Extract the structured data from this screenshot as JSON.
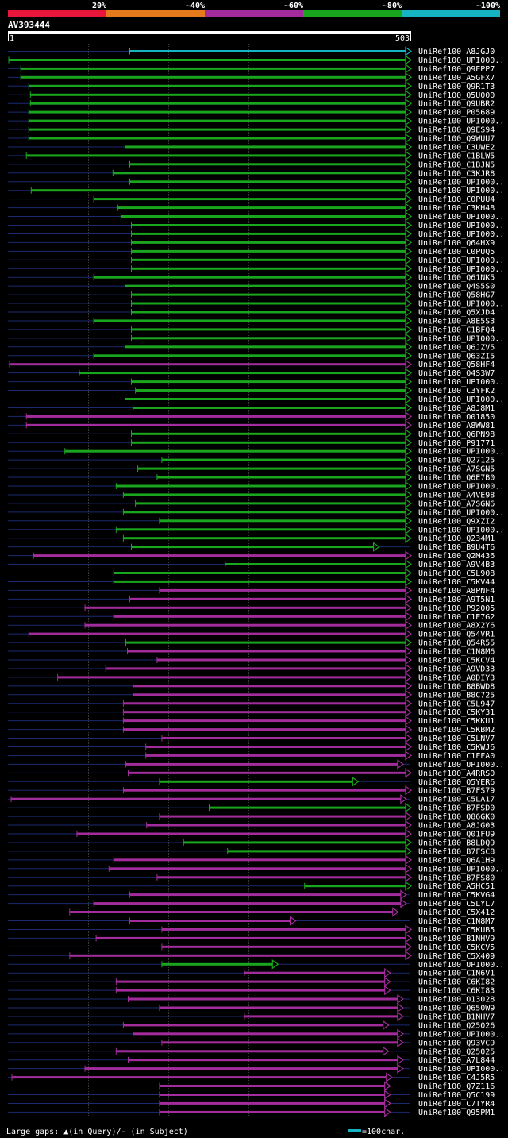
{
  "header": {
    "legend": [
      {
        "label": "20%",
        "color": "#e8163b"
      },
      {
        "label": "~40%",
        "color": "#e87a1e"
      },
      {
        "label": "~60%",
        "color": "#a22c9c"
      },
      {
        "label": "~80%",
        "color": "#19a51d"
      },
      {
        "label": "~100%",
        "color": "#16b3c2"
      }
    ],
    "query_id": "AV393444",
    "ruler_start": "1",
    "ruler_end": "503"
  },
  "colors": {
    "background": "#000000",
    "gap_line": "#1a2a70",
    "grid": "#3a3a3a",
    "text": "#ffffff"
  },
  "chart_data": {
    "type": "alignment-map",
    "query_length": 503,
    "note": "start/end in query residues; cat: 1=20%,2=~40%,3=~60%,4=~80%,5=~100% identity",
    "hits": [
      {
        "name": "UniRef100_A8JGJ0",
        "start": 153,
        "end": 503,
        "cat": 5
      },
      {
        "name": "UniRef100_UPI000..",
        "start": 2,
        "end": 503,
        "cat": 4
      },
      {
        "name": "UniRef100_Q9EPP7",
        "start": 17,
        "end": 503,
        "cat": 4
      },
      {
        "name": "UniRef100_A5GFX7",
        "start": 17,
        "end": 503,
        "cat": 4
      },
      {
        "name": "UniRef100_Q9R1T3",
        "start": 27,
        "end": 503,
        "cat": 4
      },
      {
        "name": "UniRef100_Q5U000",
        "start": 29,
        "end": 503,
        "cat": 4
      },
      {
        "name": "UniRef100_Q9UBR2",
        "start": 29,
        "end": 503,
        "cat": 4
      },
      {
        "name": "UniRef100_P05689",
        "start": 27,
        "end": 503,
        "cat": 4
      },
      {
        "name": "UniRef100_UPI000..",
        "start": 27,
        "end": 503,
        "cat": 4
      },
      {
        "name": "UniRef100_Q9ES94",
        "start": 27,
        "end": 503,
        "cat": 4
      },
      {
        "name": "UniRef100_Q9WUU7",
        "start": 27,
        "end": 503,
        "cat": 4
      },
      {
        "name": "UniRef100_C3UWE2",
        "start": 147,
        "end": 503,
        "cat": 4
      },
      {
        "name": "UniRef100_C1BLW5",
        "start": 24,
        "end": 503,
        "cat": 4
      },
      {
        "name": "UniRef100_C1BJN5",
        "start": 153,
        "end": 503,
        "cat": 4
      },
      {
        "name": "UniRef100_C3KJR8",
        "start": 132,
        "end": 503,
        "cat": 4
      },
      {
        "name": "UniRef100_UPI000..",
        "start": 153,
        "end": 503,
        "cat": 4
      },
      {
        "name": "UniRef100_UPI000..",
        "start": 30,
        "end": 503,
        "cat": 4
      },
      {
        "name": "UniRef100_C0PUU4",
        "start": 108,
        "end": 503,
        "cat": 4
      },
      {
        "name": "UniRef100_C3KH48",
        "start": 138,
        "end": 503,
        "cat": 4
      },
      {
        "name": "UniRef100_UPI000..",
        "start": 142,
        "end": 503,
        "cat": 4
      },
      {
        "name": "UniRef100_UPI000..",
        "start": 155,
        "end": 503,
        "cat": 4
      },
      {
        "name": "UniRef100_UPI000..",
        "start": 155,
        "end": 503,
        "cat": 4
      },
      {
        "name": "UniRef100_Q64HX9",
        "start": 155,
        "end": 503,
        "cat": 4
      },
      {
        "name": "UniRef100_C0PUQ5",
        "start": 155,
        "end": 503,
        "cat": 4
      },
      {
        "name": "UniRef100_UPI000..",
        "start": 155,
        "end": 503,
        "cat": 4
      },
      {
        "name": "UniRef100_UPI000..",
        "start": 155,
        "end": 503,
        "cat": 4
      },
      {
        "name": "UniRef100_Q61NK5",
        "start": 108,
        "end": 503,
        "cat": 4
      },
      {
        "name": "UniRef100_Q4S5S0",
        "start": 147,
        "end": 503,
        "cat": 4
      },
      {
        "name": "UniRef100_Q58HG7",
        "start": 155,
        "end": 503,
        "cat": 4
      },
      {
        "name": "UniRef100_UPI000..",
        "start": 155,
        "end": 503,
        "cat": 4
      },
      {
        "name": "UniRef100_Q5XJD4",
        "start": 155,
        "end": 503,
        "cat": 4
      },
      {
        "name": "UniRef100_A8E5S3",
        "start": 108,
        "end": 503,
        "cat": 4
      },
      {
        "name": "UniRef100_C1BFQ4",
        "start": 155,
        "end": 503,
        "cat": 4
      },
      {
        "name": "UniRef100_UPI000..",
        "start": 155,
        "end": 503,
        "cat": 4
      },
      {
        "name": "UniRef100_Q6JZV5",
        "start": 147,
        "end": 503,
        "cat": 4
      },
      {
        "name": "UniRef100_Q63ZI5",
        "start": 108,
        "end": 503,
        "cat": 4
      },
      {
        "name": "UniRef100_Q58HF4",
        "start": 3,
        "end": 503,
        "cat": 3
      },
      {
        "name": "UniRef100_Q4S3W7",
        "start": 90,
        "end": 503,
        "cat": 4
      },
      {
        "name": "UniRef100_UPI000..",
        "start": 155,
        "end": 503,
        "cat": 4
      },
      {
        "name": "UniRef100_C3YFK2",
        "start": 160,
        "end": 503,
        "cat": 4
      },
      {
        "name": "UniRef100_UPI000..",
        "start": 147,
        "end": 503,
        "cat": 4
      },
      {
        "name": "UniRef100_A8J8M1",
        "start": 157,
        "end": 503,
        "cat": 4
      },
      {
        "name": "UniRef100_O01850",
        "start": 24,
        "end": 503,
        "cat": 3
      },
      {
        "name": "UniRef100_A8WW81",
        "start": 24,
        "end": 503,
        "cat": 3
      },
      {
        "name": "UniRef100_Q6PN98",
        "start": 155,
        "end": 503,
        "cat": 4
      },
      {
        "name": "UniRef100_P91771",
        "start": 155,
        "end": 503,
        "cat": 4
      },
      {
        "name": "UniRef100_UPI000..",
        "start": 72,
        "end": 503,
        "cat": 4
      },
      {
        "name": "UniRef100_Q27125",
        "start": 193,
        "end": 503,
        "cat": 4
      },
      {
        "name": "UniRef100_A7SGN5",
        "start": 163,
        "end": 503,
        "cat": 4
      },
      {
        "name": "UniRef100_Q6E7B0",
        "start": 187,
        "end": 503,
        "cat": 4
      },
      {
        "name": "UniRef100_UPI000..",
        "start": 136,
        "end": 503,
        "cat": 4
      },
      {
        "name": "UniRef100_A4VE98",
        "start": 145,
        "end": 503,
        "cat": 4
      },
      {
        "name": "UniRef100_A7SGN6",
        "start": 160,
        "end": 503,
        "cat": 4
      },
      {
        "name": "UniRef100_UPI000..",
        "start": 145,
        "end": 503,
        "cat": 4
      },
      {
        "name": "UniRef100_Q9XZI2",
        "start": 190,
        "end": 503,
        "cat": 4
      },
      {
        "name": "UniRef100_UPI000..",
        "start": 136,
        "end": 503,
        "cat": 4
      },
      {
        "name": "UniRef100_Q234M1",
        "start": 145,
        "end": 503,
        "cat": 4
      },
      {
        "name": "UniRef100_B9U4T6",
        "start": 155,
        "end": 463,
        "cat": 4
      },
      {
        "name": "UniRef100_Q2M436",
        "start": 33,
        "end": 503,
        "cat": 3
      },
      {
        "name": "UniRef100_A9V4B3",
        "start": 272,
        "end": 503,
        "cat": 4
      },
      {
        "name": "UniRef100_C5L908",
        "start": 133,
        "end": 503,
        "cat": 4
      },
      {
        "name": "UniRef100_C5KV44",
        "start": 133,
        "end": 503,
        "cat": 4
      },
      {
        "name": "UniRef100_A8PNF4",
        "start": 190,
        "end": 503,
        "cat": 3
      },
      {
        "name": "UniRef100_A9T5N1",
        "start": 153,
        "end": 503,
        "cat": 3
      },
      {
        "name": "UniRef100_P92005",
        "start": 97,
        "end": 503,
        "cat": 3
      },
      {
        "name": "UniRef100_C1E7G2",
        "start": 133,
        "end": 503,
        "cat": 3
      },
      {
        "name": "UniRef100_A8X2Y6",
        "start": 97,
        "end": 503,
        "cat": 3
      },
      {
        "name": "UniRef100_Q54VR1",
        "start": 27,
        "end": 503,
        "cat": 3
      },
      {
        "name": "UniRef100_Q54R55",
        "start": 148,
        "end": 503,
        "cat": 4
      },
      {
        "name": "UniRef100_C1N8M6",
        "start": 150,
        "end": 503,
        "cat": 3
      },
      {
        "name": "UniRef100_C5KCV4",
        "start": 187,
        "end": 503,
        "cat": 3
      },
      {
        "name": "UniRef100_A9VD33",
        "start": 123,
        "end": 503,
        "cat": 3
      },
      {
        "name": "UniRef100_A0DIY3",
        "start": 63,
        "end": 503,
        "cat": 3
      },
      {
        "name": "UniRef100_B8BWD8",
        "start": 157,
        "end": 503,
        "cat": 3
      },
      {
        "name": "UniRef100_B8C725",
        "start": 157,
        "end": 503,
        "cat": 3
      },
      {
        "name": "UniRef100_C5L947",
        "start": 145,
        "end": 503,
        "cat": 3
      },
      {
        "name": "UniRef100_C5KY31",
        "start": 145,
        "end": 503,
        "cat": 3
      },
      {
        "name": "UniRef100_C5KKU1",
        "start": 145,
        "end": 503,
        "cat": 3
      },
      {
        "name": "UniRef100_C5KBM2",
        "start": 145,
        "end": 503,
        "cat": 3
      },
      {
        "name": "UniRef100_C5LNV7",
        "start": 193,
        "end": 503,
        "cat": 3
      },
      {
        "name": "UniRef100_C5KWJ6",
        "start": 173,
        "end": 503,
        "cat": 3
      },
      {
        "name": "UniRef100_C1FFA0",
        "start": 173,
        "end": 503,
        "cat": 3
      },
      {
        "name": "UniRef100_UPI000..",
        "start": 148,
        "end": 493,
        "cat": 3
      },
      {
        "name": "UniRef100_A4RRS0",
        "start": 151,
        "end": 503,
        "cat": 3
      },
      {
        "name": "UniRef100_Q5YER6",
        "start": 190,
        "end": 437,
        "cat": 4
      },
      {
        "name": "UniRef100_B7FS79",
        "start": 145,
        "end": 503,
        "cat": 3
      },
      {
        "name": "UniRef100_C5LA17",
        "start": 5,
        "end": 497,
        "cat": 3
      },
      {
        "name": "UniRef100_B7FSD0",
        "start": 252,
        "end": 503,
        "cat": 4
      },
      {
        "name": "UniRef100_Q86GK0",
        "start": 190,
        "end": 503,
        "cat": 3
      },
      {
        "name": "UniRef100_A8JG03",
        "start": 174,
        "end": 503,
        "cat": 3
      },
      {
        "name": "UniRef100_Q01FU9",
        "start": 87,
        "end": 503,
        "cat": 3
      },
      {
        "name": "UniRef100_B8LDQ9",
        "start": 220,
        "end": 503,
        "cat": 4
      },
      {
        "name": "UniRef100_B7FSC8",
        "start": 275,
        "end": 503,
        "cat": 4
      },
      {
        "name": "UniRef100_Q6A1H9",
        "start": 133,
        "end": 503,
        "cat": 3
      },
      {
        "name": "UniRef100_UPI000..",
        "start": 127,
        "end": 503,
        "cat": 3
      },
      {
        "name": "UniRef100_B7FS80",
        "start": 187,
        "end": 503,
        "cat": 3
      },
      {
        "name": "UniRef100_A5HC51",
        "start": 371,
        "end": 503,
        "cat": 4
      },
      {
        "name": "UniRef100_C5KVG4",
        "start": 153,
        "end": 497,
        "cat": 3
      },
      {
        "name": "UniRef100_C5LYL7",
        "start": 108,
        "end": 497,
        "cat": 3
      },
      {
        "name": "UniRef100_C5X412",
        "start": 78,
        "end": 487,
        "cat": 3
      },
      {
        "name": "UniRef100_C1N8M7",
        "start": 153,
        "end": 359,
        "cat": 3
      },
      {
        "name": "UniRef100_C5KUB5",
        "start": 193,
        "end": 503,
        "cat": 3
      },
      {
        "name": "UniRef100_B1NHV9",
        "start": 111,
        "end": 503,
        "cat": 3
      },
      {
        "name": "UniRef100_C5KCV5",
        "start": 193,
        "end": 503,
        "cat": 3
      },
      {
        "name": "UniRef100_C5X409",
        "start": 78,
        "end": 503,
        "cat": 3
      },
      {
        "name": "UniRef100_UPI000..",
        "start": 193,
        "end": 337,
        "cat": 4
      },
      {
        "name": "UniRef100_C1N6V1",
        "start": 296,
        "end": 477,
        "cat": 3
      },
      {
        "name": "UniRef100_C6KI82",
        "start": 136,
        "end": 477,
        "cat": 3
      },
      {
        "name": "UniRef100_C6KI83",
        "start": 136,
        "end": 477,
        "cat": 3
      },
      {
        "name": "UniRef100_O13028",
        "start": 151,
        "end": 493,
        "cat": 3
      },
      {
        "name": "UniRef100_Q650W9",
        "start": 190,
        "end": 493,
        "cat": 3
      },
      {
        "name": "UniRef100_B1NHV7",
        "start": 296,
        "end": 493,
        "cat": 3
      },
      {
        "name": "UniRef100_Q25026",
        "start": 145,
        "end": 475,
        "cat": 3
      },
      {
        "name": "UniRef100_UPI000..",
        "start": 157,
        "end": 493,
        "cat": 3
      },
      {
        "name": "UniRef100_Q93VC9",
        "start": 193,
        "end": 493,
        "cat": 3
      },
      {
        "name": "UniRef100_Q25025",
        "start": 136,
        "end": 475,
        "cat": 3
      },
      {
        "name": "UniRef100_A7L844",
        "start": 151,
        "end": 493,
        "cat": 3
      },
      {
        "name": "UniRef100_UPI000..",
        "start": 97,
        "end": 493,
        "cat": 3
      },
      {
        "name": "UniRef100_C4J5R5",
        "start": 6,
        "end": 479,
        "cat": 3
      },
      {
        "name": "UniRef100_Q7Z116",
        "start": 190,
        "end": 477,
        "cat": 3
      },
      {
        "name": "UniRef100_Q5C199",
        "start": 190,
        "end": 477,
        "cat": 3
      },
      {
        "name": "UniRef100_C7TYR4",
        "start": 190,
        "end": 477,
        "cat": 3
      },
      {
        "name": "UniRef100_Q95PM1",
        "start": 190,
        "end": 477,
        "cat": 3
      }
    ]
  },
  "footer": {
    "gap_legend": "Large gaps: ▲(in Query)/- (in Subject)",
    "scale_legend": "=100char."
  }
}
